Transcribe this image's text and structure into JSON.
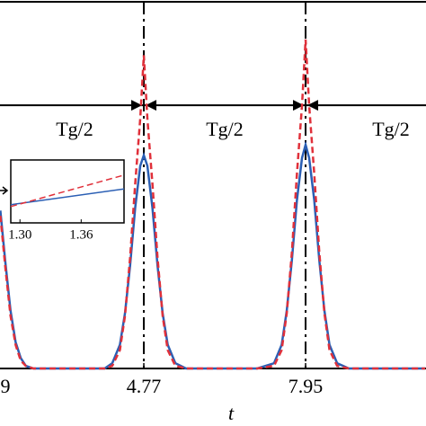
{
  "chart_data": {
    "type": "line",
    "x_label": "t",
    "x": [
      1.95,
      2.05,
      2.15,
      2.25,
      2.35,
      2.45,
      2.6,
      3.0,
      3.5,
      4.0,
      4.15,
      4.3,
      4.4,
      4.5,
      4.6,
      4.7,
      4.77,
      4.84,
      4.94,
      5.04,
      5.14,
      5.24,
      5.39,
      5.6,
      6.0,
      6.5,
      7.0,
      7.33,
      7.48,
      7.58,
      7.68,
      7.78,
      7.88,
      7.95,
      8.02,
      8.12,
      8.22,
      8.32,
      8.42,
      8.57,
      8.8,
      9.3,
      10.3
    ],
    "series": [
      {
        "color": "#2b5fb4",
        "style": "solid",
        "values": [
          0.6,
          0.4,
          0.22,
          0.1,
          0.04,
          0.01,
          0,
          0,
          0,
          0,
          0.02,
          0.09,
          0.21,
          0.39,
          0.61,
          0.77,
          0.81,
          0.77,
          0.61,
          0.39,
          0.21,
          0.09,
          0.02,
          0,
          0,
          0,
          0,
          0.02,
          0.09,
          0.22,
          0.41,
          0.64,
          0.8,
          0.85,
          0.8,
          0.64,
          0.41,
          0.22,
          0.09,
          0.02,
          0,
          0,
          0
        ]
      },
      {
        "color": "#e0303a",
        "style": "dashed",
        "values": [
          0.58,
          0.38,
          0.2,
          0.09,
          0.03,
          0.01,
          0,
          0,
          0,
          0,
          0.01,
          0.07,
          0.2,
          0.42,
          0.7,
          0.95,
          1.19,
          0.95,
          0.7,
          0.42,
          0.2,
          0.07,
          0.01,
          0,
          0,
          0,
          0,
          0.01,
          0.07,
          0.21,
          0.44,
          0.74,
          1.0,
          1.25,
          1.0,
          0.74,
          0.44,
          0.21,
          0.07,
          0.01,
          0,
          0,
          0
        ]
      }
    ],
    "xlim": [
      1.943,
      10.317
    ],
    "ylim": [
      0,
      1.4
    ],
    "xticks": [
      {
        "value": 1.59,
        "label": "9"
      },
      4.77,
      7.95
    ],
    "vlines": [
      4.77,
      7.95
    ],
    "hline": 1.0,
    "annotations": [
      "Tg/2",
      "Tg/2",
      "Tg/2"
    ],
    "inset": {
      "x": [
        1.291,
        1.402
      ],
      "xlim": [
        1.291,
        1.402
      ],
      "ylim": [
        0,
        1
      ],
      "xticks": [
        {
          "value": 1.3,
          "label": "1.30"
        },
        {
          "value": 1.36,
          "label": "1.36"
        }
      ],
      "series": [
        {
          "color": "#2b5fb4",
          "style": "solid",
          "values": [
            0.29,
            0.54
          ]
        },
        {
          "color": "#e0303a",
          "style": "dashed",
          "values": [
            0.26,
            0.76
          ]
        }
      ]
    }
  }
}
